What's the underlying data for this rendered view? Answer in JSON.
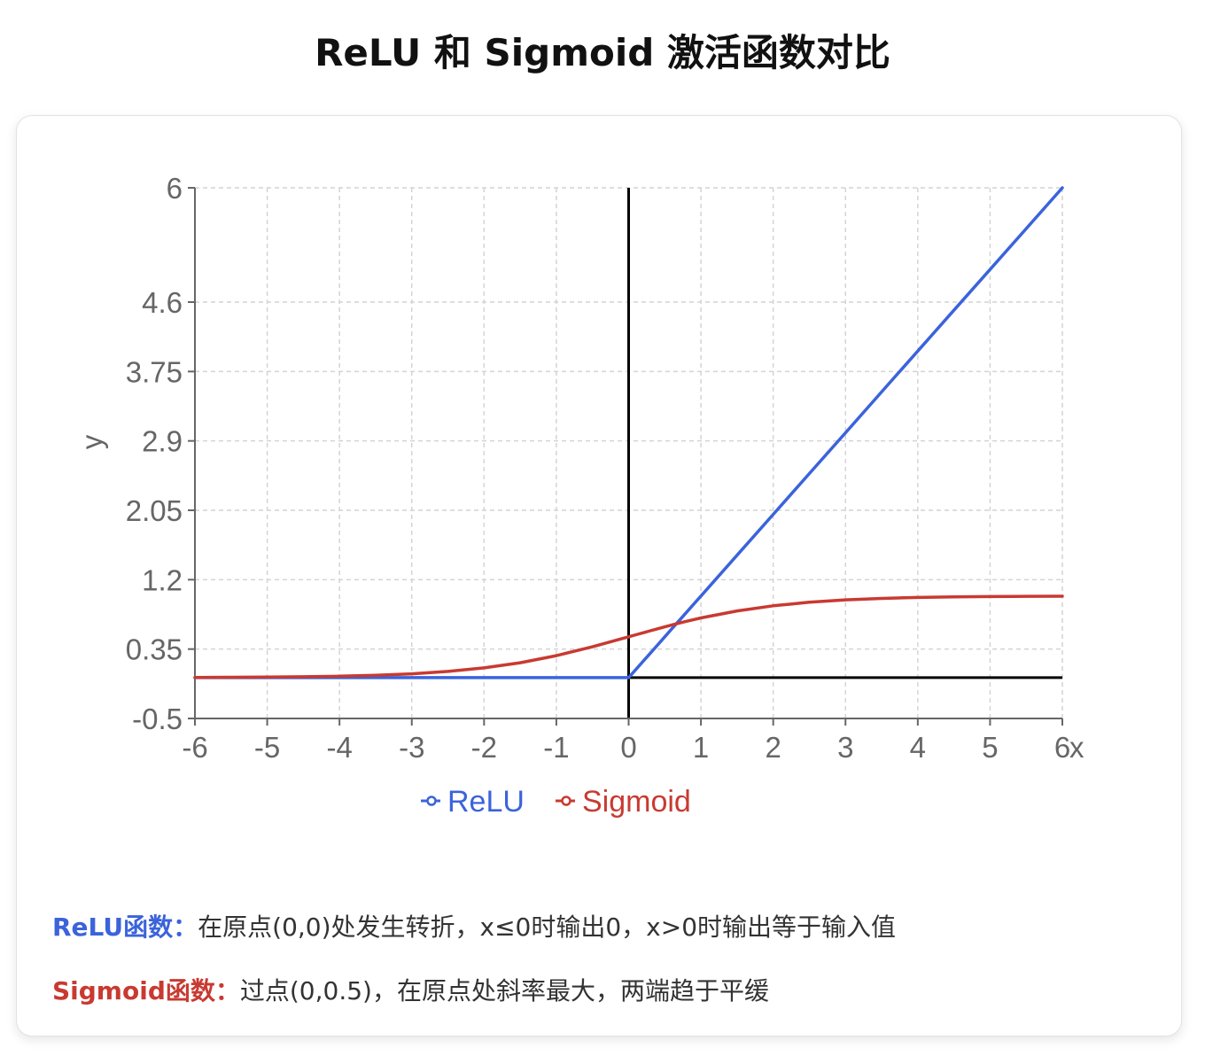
{
  "page": {
    "title": "ReLU 和 Sigmoid 激活函数对比"
  },
  "chart_data": {
    "type": "line",
    "x": [
      -6,
      -5.5,
      -5,
      -4.5,
      -4,
      -3.5,
      -3,
      -2.5,
      -2,
      -1.5,
      -1,
      -0.5,
      -0.1,
      0,
      0.1,
      0.2,
      0.3,
      0.4,
      0.5,
      0.6,
      0.7,
      0.8,
      0.9,
      1,
      1.5,
      2,
      2.5,
      3,
      3.5,
      4,
      4.5,
      5,
      5.5,
      6
    ],
    "series": [
      {
        "name": "ReLU",
        "color": "#3b63db",
        "values": [
          0,
          0,
          0,
          0,
          0,
          0,
          0,
          0,
          0,
          0,
          0,
          0,
          0,
          0,
          0.1,
          0.2,
          0.3,
          0.4,
          0.5,
          0.6,
          0.7,
          0.8,
          0.9,
          1,
          1.5,
          2,
          2.5,
          3,
          3.5,
          4,
          4.5,
          5,
          5.5,
          6
        ]
      },
      {
        "name": "Sigmoid",
        "color": "#c83a31",
        "values": [
          0.0025,
          0.0041,
          0.0067,
          0.011,
          0.018,
          0.0293,
          0.0474,
          0.0759,
          0.1192,
          0.1824,
          0.2689,
          0.3775,
          0.475,
          0.5,
          0.525,
          0.5498,
          0.5744,
          0.5987,
          0.6225,
          0.6457,
          0.6682,
          0.69,
          0.7109,
          0.7311,
          0.8176,
          0.8808,
          0.9241,
          0.9526,
          0.9707,
          0.982,
          0.989,
          0.9933,
          0.9959,
          0.9975
        ]
      }
    ],
    "xlabel": "x",
    "ylabel": "y",
    "xlim": [
      -6,
      6
    ],
    "ylim": [
      -0.5,
      6
    ],
    "xticks": [
      "-6",
      "-5",
      "-4",
      "-3",
      "-2",
      "-1",
      "0",
      "1",
      "2",
      "3",
      "4",
      "5",
      "6"
    ],
    "yticks": [
      "-0.5",
      "0.35",
      "1.2",
      "2.05",
      "2.9",
      "3.75",
      "4.6",
      "6"
    ],
    "grid": true,
    "legend": "bottom-center"
  },
  "notes": [
    {
      "label": "ReLU函数：",
      "text": "在原点(0,0)处发生转折，x≤0时输出0，x>0时输出等于输入值",
      "color": "#3b63db"
    },
    {
      "label": "Sigmoid函数：",
      "text": "过点(0,0.5)，在原点处斜率最大，两端趋于平缓",
      "color": "#c83a31"
    }
  ]
}
